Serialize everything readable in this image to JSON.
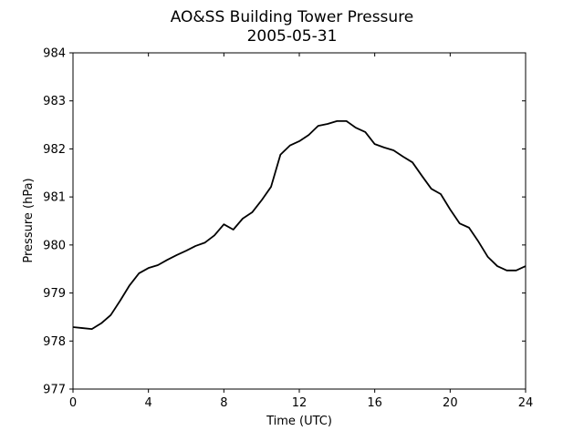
{
  "chart_data": {
    "type": "line",
    "title": "AO&SS Building Tower Pressure",
    "subtitle": "2005-05-31",
    "xlabel": "Time (UTC)",
    "ylabel": "Pressure (hPa)",
    "x": [
      0,
      0.5,
      1,
      1.5,
      2,
      2.5,
      3,
      3.5,
      4,
      4.5,
      5,
      5.5,
      6,
      6.5,
      7,
      7.5,
      8,
      8.5,
      9,
      9.5,
      10,
      10.5,
      11,
      11.5,
      12,
      12.5,
      13,
      13.5,
      14,
      14.5,
      15,
      15.5,
      16,
      16.5,
      17,
      17.5,
      18,
      18.5,
      19,
      19.5,
      20,
      20.5,
      21,
      21.5,
      22,
      22.5,
      23,
      23.5,
      24
    ],
    "series": [
      {
        "color": "#000000",
        "values": [
          978.29,
          978.27,
          978.25,
          978.37,
          978.54,
          978.84,
          979.16,
          979.41,
          979.52,
          979.58,
          979.69,
          979.79,
          979.88,
          979.98,
          980.05,
          980.2,
          980.43,
          980.32,
          980.55,
          980.68,
          980.93,
          981.21,
          981.88,
          982.07,
          982.16,
          982.29,
          982.48,
          982.52,
          982.58,
          982.58,
          982.44,
          982.35,
          982.1,
          982.03,
          981.97,
          981.84,
          981.72,
          981.44,
          981.17,
          981.06,
          980.74,
          980.45,
          980.36,
          980.07,
          979.75,
          979.56,
          979.47,
          979.47,
          979.56
        ]
      }
    ],
    "xlim": [
      0,
      24
    ],
    "xticks": [
      0,
      4,
      8,
      12,
      16,
      20,
      24
    ],
    "ylim": [
      977,
      984
    ],
    "yticks": [
      977,
      978,
      979,
      980,
      981,
      982,
      983,
      984
    ],
    "grid": false
  }
}
